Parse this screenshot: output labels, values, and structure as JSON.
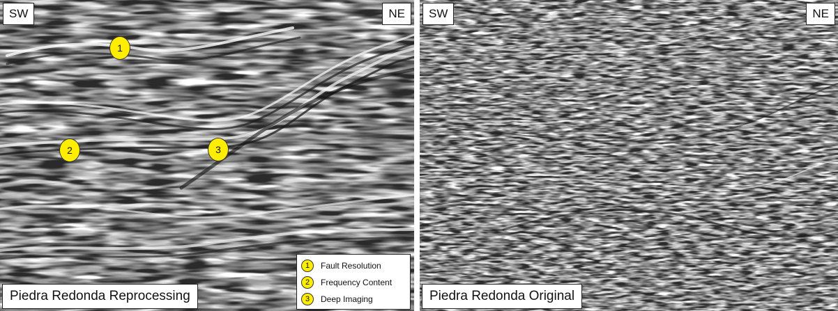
{
  "left_panel": {
    "corner_left": "SW",
    "corner_right": "NE",
    "caption": "Piedra Redonda Reprocessing",
    "markers": [
      {
        "label": "1"
      },
      {
        "label": "2"
      },
      {
        "label": "3"
      }
    ],
    "legend": [
      {
        "number": "1",
        "label": "Fault Resolution"
      },
      {
        "number": "2",
        "label": "Frequency Content"
      },
      {
        "number": "3",
        "label": "Deep Imaging"
      }
    ]
  },
  "right_panel": {
    "corner_left": "SW",
    "corner_right": "NE",
    "caption": "Piedra Redonda Original"
  },
  "colors": {
    "marker_fill": "#ffee00",
    "image_gray": "#9a9a9a"
  }
}
